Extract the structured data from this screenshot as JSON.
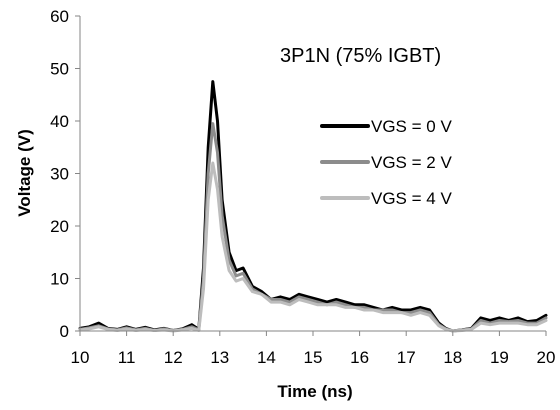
{
  "chart_data": {
    "type": "line",
    "title": "3P1N (75% IGBT)",
    "xlabel": "Time (ns)",
    "ylabel": "Voltage (V)",
    "xlim": [
      10,
      20
    ],
    "ylim": [
      0,
      60
    ],
    "x_ticks": [
      "10",
      "11",
      "12",
      "13",
      "14",
      "15",
      "16",
      "17",
      "18",
      "19",
      "20"
    ],
    "y_ticks": [
      "0",
      "10",
      "20",
      "30",
      "40",
      "50",
      "60"
    ],
    "grid": false,
    "legend_position": "right",
    "series": [
      {
        "name": "VGS = 0 V",
        "color": "#000000",
        "width": 3,
        "x": [
          10.0,
          10.2,
          10.4,
          10.6,
          10.8,
          11.0,
          11.2,
          11.4,
          11.6,
          11.8,
          12.0,
          12.2,
          12.4,
          12.55,
          12.65,
          12.75,
          12.85,
          12.95,
          13.05,
          13.2,
          13.35,
          13.5,
          13.7,
          13.9,
          14.1,
          14.3,
          14.5,
          14.7,
          14.9,
          15.1,
          15.3,
          15.5,
          15.7,
          15.9,
          16.1,
          16.3,
          16.5,
          16.7,
          16.9,
          17.1,
          17.3,
          17.5,
          17.7,
          17.85,
          18.0,
          18.2,
          18.4,
          18.6,
          18.8,
          19.0,
          19.2,
          19.4,
          19.6,
          19.8,
          20.0
        ],
        "y": [
          0.5,
          0.8,
          1.5,
          0.5,
          0.3,
          0.8,
          0.3,
          0.7,
          0.2,
          0.5,
          0.1,
          0.4,
          1.2,
          0.3,
          12.0,
          35.0,
          47.5,
          40.0,
          25.0,
          15.0,
          11.5,
          12.0,
          8.5,
          7.5,
          6.0,
          6.5,
          6.0,
          7.0,
          6.5,
          6.0,
          5.5,
          6.0,
          5.5,
          5.0,
          5.0,
          4.5,
          4.0,
          4.5,
          4.0,
          4.0,
          4.5,
          4.0,
          1.5,
          0.5,
          0.0,
          0.2,
          0.5,
          2.5,
          2.0,
          2.5,
          2.0,
          2.5,
          1.8,
          2.0,
          3.0
        ]
      },
      {
        "name": "VGS = 2 V",
        "color": "#8c8c8c",
        "width": 3,
        "x": [
          10.0,
          10.2,
          10.4,
          10.6,
          10.8,
          11.0,
          11.2,
          11.4,
          11.6,
          11.8,
          12.0,
          12.2,
          12.4,
          12.55,
          12.65,
          12.75,
          12.85,
          12.95,
          13.05,
          13.2,
          13.35,
          13.5,
          13.7,
          13.9,
          14.1,
          14.3,
          14.5,
          14.7,
          14.9,
          15.1,
          15.3,
          15.5,
          15.7,
          15.9,
          16.1,
          16.3,
          16.5,
          16.7,
          16.9,
          17.1,
          17.3,
          17.5,
          17.7,
          17.85,
          18.0,
          18.2,
          18.4,
          18.6,
          18.8,
          19.0,
          19.2,
          19.4,
          19.6,
          19.8,
          20.0
        ],
        "y": [
          0.3,
          0.6,
          1.0,
          0.4,
          0.2,
          0.6,
          0.2,
          0.5,
          0.1,
          0.4,
          0.1,
          0.3,
          0.8,
          0.2,
          10.0,
          30.0,
          39.5,
          34.0,
          22.0,
          13.5,
          10.5,
          11.0,
          8.0,
          7.0,
          6.0,
          6.0,
          5.5,
          6.5,
          6.0,
          5.5,
          5.0,
          5.5,
          5.0,
          4.5,
          4.5,
          4.0,
          4.0,
          4.0,
          3.5,
          3.5,
          4.0,
          3.5,
          1.2,
          0.4,
          0.0,
          0.2,
          0.4,
          2.0,
          1.5,
          2.0,
          1.8,
          2.0,
          1.5,
          1.5,
          2.5
        ]
      },
      {
        "name": "VGS = 4 V",
        "color": "#bdbdbd",
        "width": 3,
        "x": [
          10.0,
          10.2,
          10.4,
          10.6,
          10.8,
          11.0,
          11.2,
          11.4,
          11.6,
          11.8,
          12.0,
          12.2,
          12.4,
          12.55,
          12.65,
          12.75,
          12.85,
          12.95,
          13.05,
          13.2,
          13.35,
          13.5,
          13.7,
          13.9,
          14.1,
          14.3,
          14.5,
          14.7,
          14.9,
          15.1,
          15.3,
          15.5,
          15.7,
          15.9,
          16.1,
          16.3,
          16.5,
          16.7,
          16.9,
          17.1,
          17.3,
          17.5,
          17.7,
          17.85,
          18.0,
          18.2,
          18.4,
          18.6,
          18.8,
          19.0,
          19.2,
          19.4,
          19.6,
          19.8,
          20.0
        ],
        "y": [
          0.2,
          0.4,
          0.8,
          0.3,
          0.1,
          0.4,
          0.1,
          0.3,
          0.1,
          0.2,
          0.0,
          0.2,
          0.5,
          0.1,
          8.0,
          25.0,
          32.0,
          27.0,
          18.0,
          11.5,
          9.5,
          10.0,
          7.5,
          7.0,
          5.5,
          5.5,
          5.0,
          6.0,
          5.5,
          5.0,
          5.0,
          5.0,
          4.5,
          4.5,
          4.0,
          4.0,
          3.5,
          3.5,
          3.5,
          3.0,
          3.5,
          3.0,
          1.0,
          0.3,
          0.0,
          0.1,
          0.3,
          1.5,
          1.2,
          1.5,
          1.5,
          1.5,
          1.2,
          1.2,
          2.0
        ]
      }
    ]
  }
}
